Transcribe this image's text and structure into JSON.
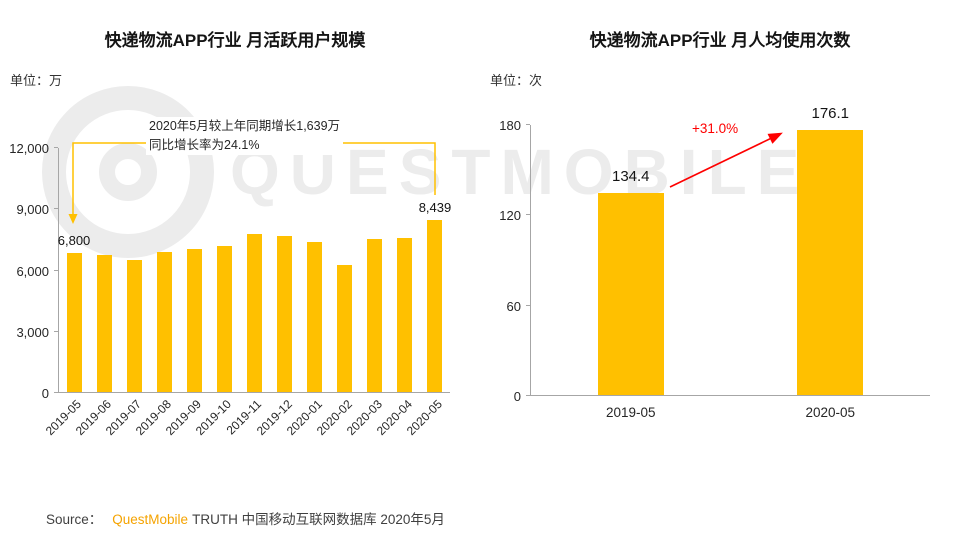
{
  "watermark": {
    "text": "QUESTMOBILE"
  },
  "colors": {
    "bar": "#FFC000",
    "accent_red": "#FE0000",
    "brand_orange": "#F5A300",
    "axis": "#A6A6A6",
    "watermark": "#ECECEC"
  },
  "chart_data": [
    {
      "type": "bar",
      "title": "快递物流APP行业 月活跃用户规模",
      "unit_label": "单位：万",
      "categories": [
        "2019-05",
        "2019-06",
        "2019-07",
        "2019-08",
        "2019-09",
        "2019-10",
        "2019-11",
        "2019-12",
        "2020-01",
        "2020-02",
        "2020-03",
        "2020-04",
        "2020-05"
      ],
      "values": [
        6800,
        6700,
        6450,
        6850,
        7000,
        7150,
        7750,
        7650,
        7350,
        6200,
        7500,
        7550,
        8439
      ],
      "ylim": [
        0,
        12000
      ],
      "ytick_values": [
        0,
        3000,
        6000,
        9000,
        12000
      ],
      "ytick_labels": [
        "0",
        "3,000",
        "6,000",
        "9,000",
        "12,000"
      ],
      "bar_color": "#FFC000",
      "grid": false,
      "legend": "none",
      "data_labels": {
        "first": "6,800",
        "last": "8,439"
      },
      "annotation_line1": "2020年5月较上年同期增长1,639万",
      "annotation_line2": "同比增长率为24.1%"
    },
    {
      "type": "bar",
      "title": "快递物流APP行业 月人均使用次数",
      "unit_label": "单位：次",
      "categories": [
        "2019-05",
        "2020-05"
      ],
      "values": [
        134.4,
        176.1
      ],
      "value_labels": [
        "134.4",
        "176.1"
      ],
      "ylim": [
        0,
        180
      ],
      "ytick_values": [
        0,
        60,
        120,
        180
      ],
      "ytick_labels": [
        "0",
        "60",
        "120",
        "180"
      ],
      "bar_color": "#FFC000",
      "grid": false,
      "legend": "none",
      "growth_label": "+31.0%"
    }
  ],
  "footer": {
    "source_prefix": "Source：",
    "brand": "QuestMobile",
    "suffix": "TRUTH 中国移动互联网数据库 2020年5月"
  }
}
